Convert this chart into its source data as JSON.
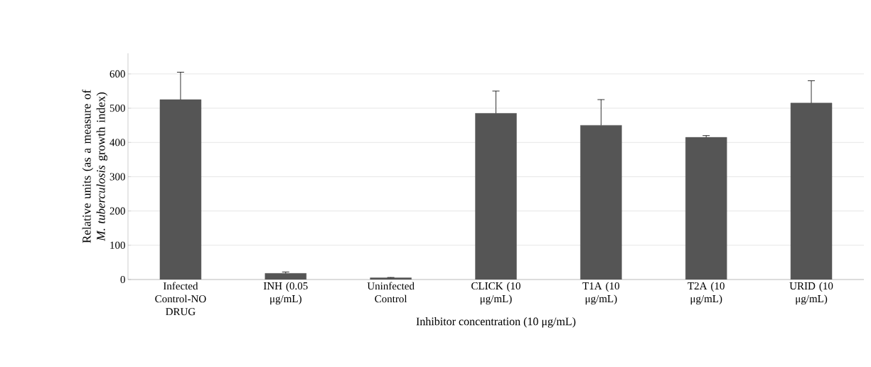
{
  "chart_data": {
    "type": "bar",
    "categories": [
      "Infected Control-NO DRUG",
      "INH (0.05 μg/mL)",
      "Uninfected Control",
      "CLICK (10 μg/mL)",
      "T1A (10 μg/mL)",
      "T2A (10 μg/mL)",
      "URID (10 μg/mL)"
    ],
    "values": [
      525,
      18,
      5,
      485,
      450,
      415,
      515
    ],
    "errors": [
      80,
      4,
      1,
      65,
      75,
      5,
      65
    ],
    "color": "#555555",
    "xlabel": "Inhibitor concentration (10 μg/mL)",
    "ylabel": "Relative units (as a measure of *M. tuberculosis* growth index)",
    "ylim": [
      0,
      660
    ],
    "yticks": [
      0,
      100,
      200,
      300,
      400,
      500,
      600
    ],
    "grid": "y"
  }
}
